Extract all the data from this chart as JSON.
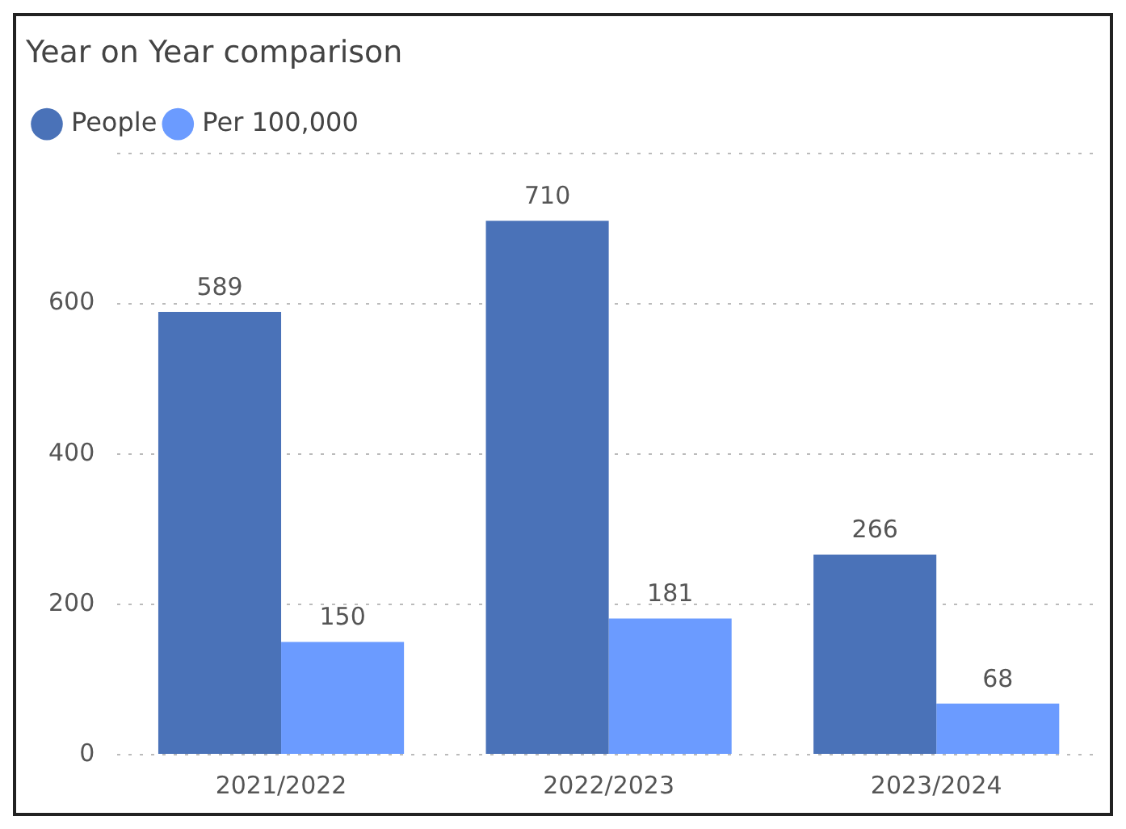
{
  "chart_data": {
    "type": "bar",
    "title": "Year on Year comparison",
    "categories": [
      "2021/2022",
      "2022/2023",
      "2023/2024"
    ],
    "series": [
      {
        "name": "People",
        "color": "#4a72b8",
        "values": [
          589,
          710,
          266
        ]
      },
      {
        "name": "Per 100,000",
        "color": "#6b9bff",
        "values": [
          150,
          181,
          68
        ]
      }
    ],
    "ylim": [
      0,
      800
    ],
    "yticks": [
      0,
      200,
      400,
      600,
      {
        "value": 800,
        "label": null
      }
    ],
    "grid": "y",
    "legend": "top left",
    "marker": "circle",
    "data_labels": true
  }
}
